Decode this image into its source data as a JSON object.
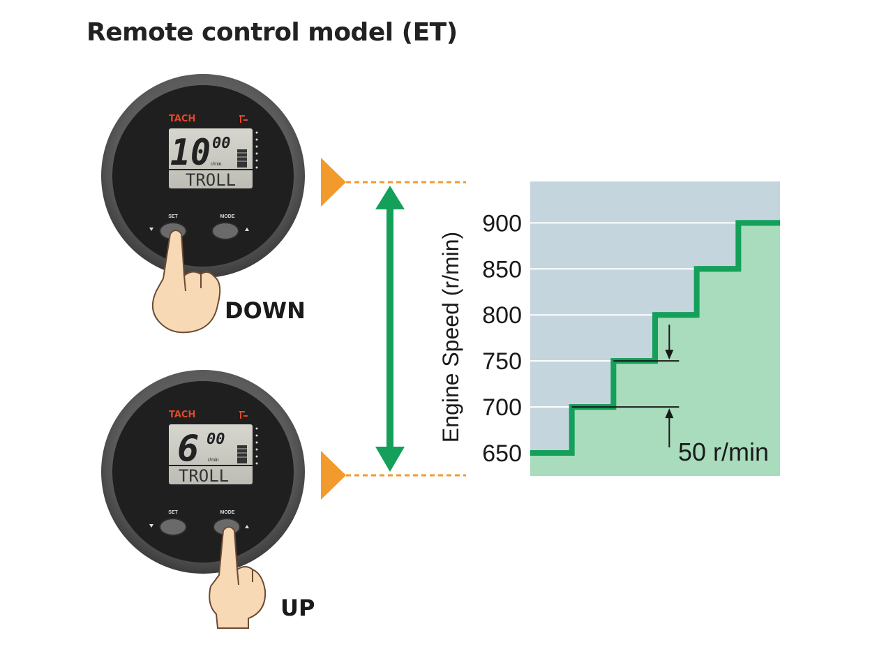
{
  "title": "Remote control model (ET)",
  "gauges": [
    {
      "brand": "TACH",
      "rpm_main": "10",
      "rpm_small": "00",
      "unit": "r/min",
      "mode_text": "TROLL",
      "set_label": "SET",
      "mode_label": "MODE",
      "pressed": "set",
      "action_label": "DOWN"
    },
    {
      "brand": "TACH",
      "rpm_main": "6",
      "rpm_small": "00",
      "unit": "r/min",
      "mode_text": "TROLL",
      "set_label": "SET",
      "mode_label": "MODE",
      "pressed": "mode",
      "action_label": "UP"
    }
  ],
  "chart_data": {
    "type": "line",
    "step": true,
    "ylabel": "Engine Speed (r/min)",
    "xlabel": "",
    "yticks": [
      650,
      700,
      750,
      800,
      850,
      900
    ],
    "ylim": [
      625,
      945
    ],
    "series": [
      {
        "values": [
          650,
          700,
          750,
          800,
          850,
          900
        ]
      }
    ],
    "annotation": "50 r/min",
    "grid": true
  },
  "colors": {
    "step_line": "#14a05a",
    "area_below": "#a8dcbc",
    "area_above": "#c5d5de",
    "gridline": "#ffffff",
    "arrow": "#14a05a",
    "marker": "#f39a2c",
    "brand": "#e0482a"
  }
}
